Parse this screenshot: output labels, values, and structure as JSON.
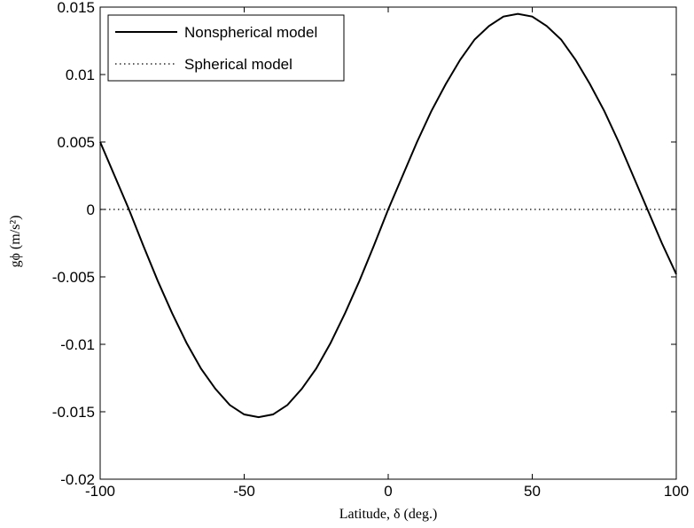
{
  "chart_data": {
    "type": "line",
    "xlabel": "Latitude, δ (deg.)",
    "ylabel": "gϕ (m/s²)",
    "xlim": [
      -100,
      100
    ],
    "xticks": [
      -100,
      -50,
      0,
      50,
      100
    ],
    "ylim": [
      -0.02,
      0.015
    ],
    "yticks": [
      -0.02,
      -0.015,
      -0.01,
      -0.005,
      0,
      0.005,
      0.01,
      0.015
    ],
    "legend": "top-left",
    "series": [
      {
        "name": "Nonspherical model",
        "color": "#000000",
        "style": "solid",
        "x": [
          -100,
          -95,
          -90,
          -85,
          -80,
          -75,
          -70,
          -65,
          -60,
          -55,
          -50,
          -45,
          -40,
          -35,
          -30,
          -25,
          -20,
          -15,
          -10,
          -5,
          0,
          5,
          10,
          15,
          20,
          25,
          30,
          35,
          40,
          45,
          50,
          55,
          60,
          65,
          70,
          75,
          80,
          85,
          90,
          95,
          100
        ],
        "values": [
          0.005,
          0.0025,
          0,
          -0.0027,
          -0.0053,
          -0.0077,
          -0.0099,
          -0.0118,
          -0.0133,
          -0.0145,
          -0.0152,
          -0.0154,
          -0.0152,
          -0.0145,
          -0.0133,
          -0.0118,
          -0.0099,
          -0.0077,
          -0.0053,
          -0.0027,
          0,
          0.0025,
          0.005,
          0.0073,
          0.0093,
          0.0111,
          0.0126,
          0.0136,
          0.0143,
          0.0145,
          0.0143,
          0.0136,
          0.0126,
          0.0111,
          0.0093,
          0.0073,
          0.005,
          0.0025,
          0,
          -0.0025,
          -0.0048
        ]
      },
      {
        "name": "Spherical model",
        "color": "#000000",
        "style": "dotted",
        "x": [
          -100,
          100
        ],
        "values": [
          0,
          0
        ]
      }
    ]
  }
}
